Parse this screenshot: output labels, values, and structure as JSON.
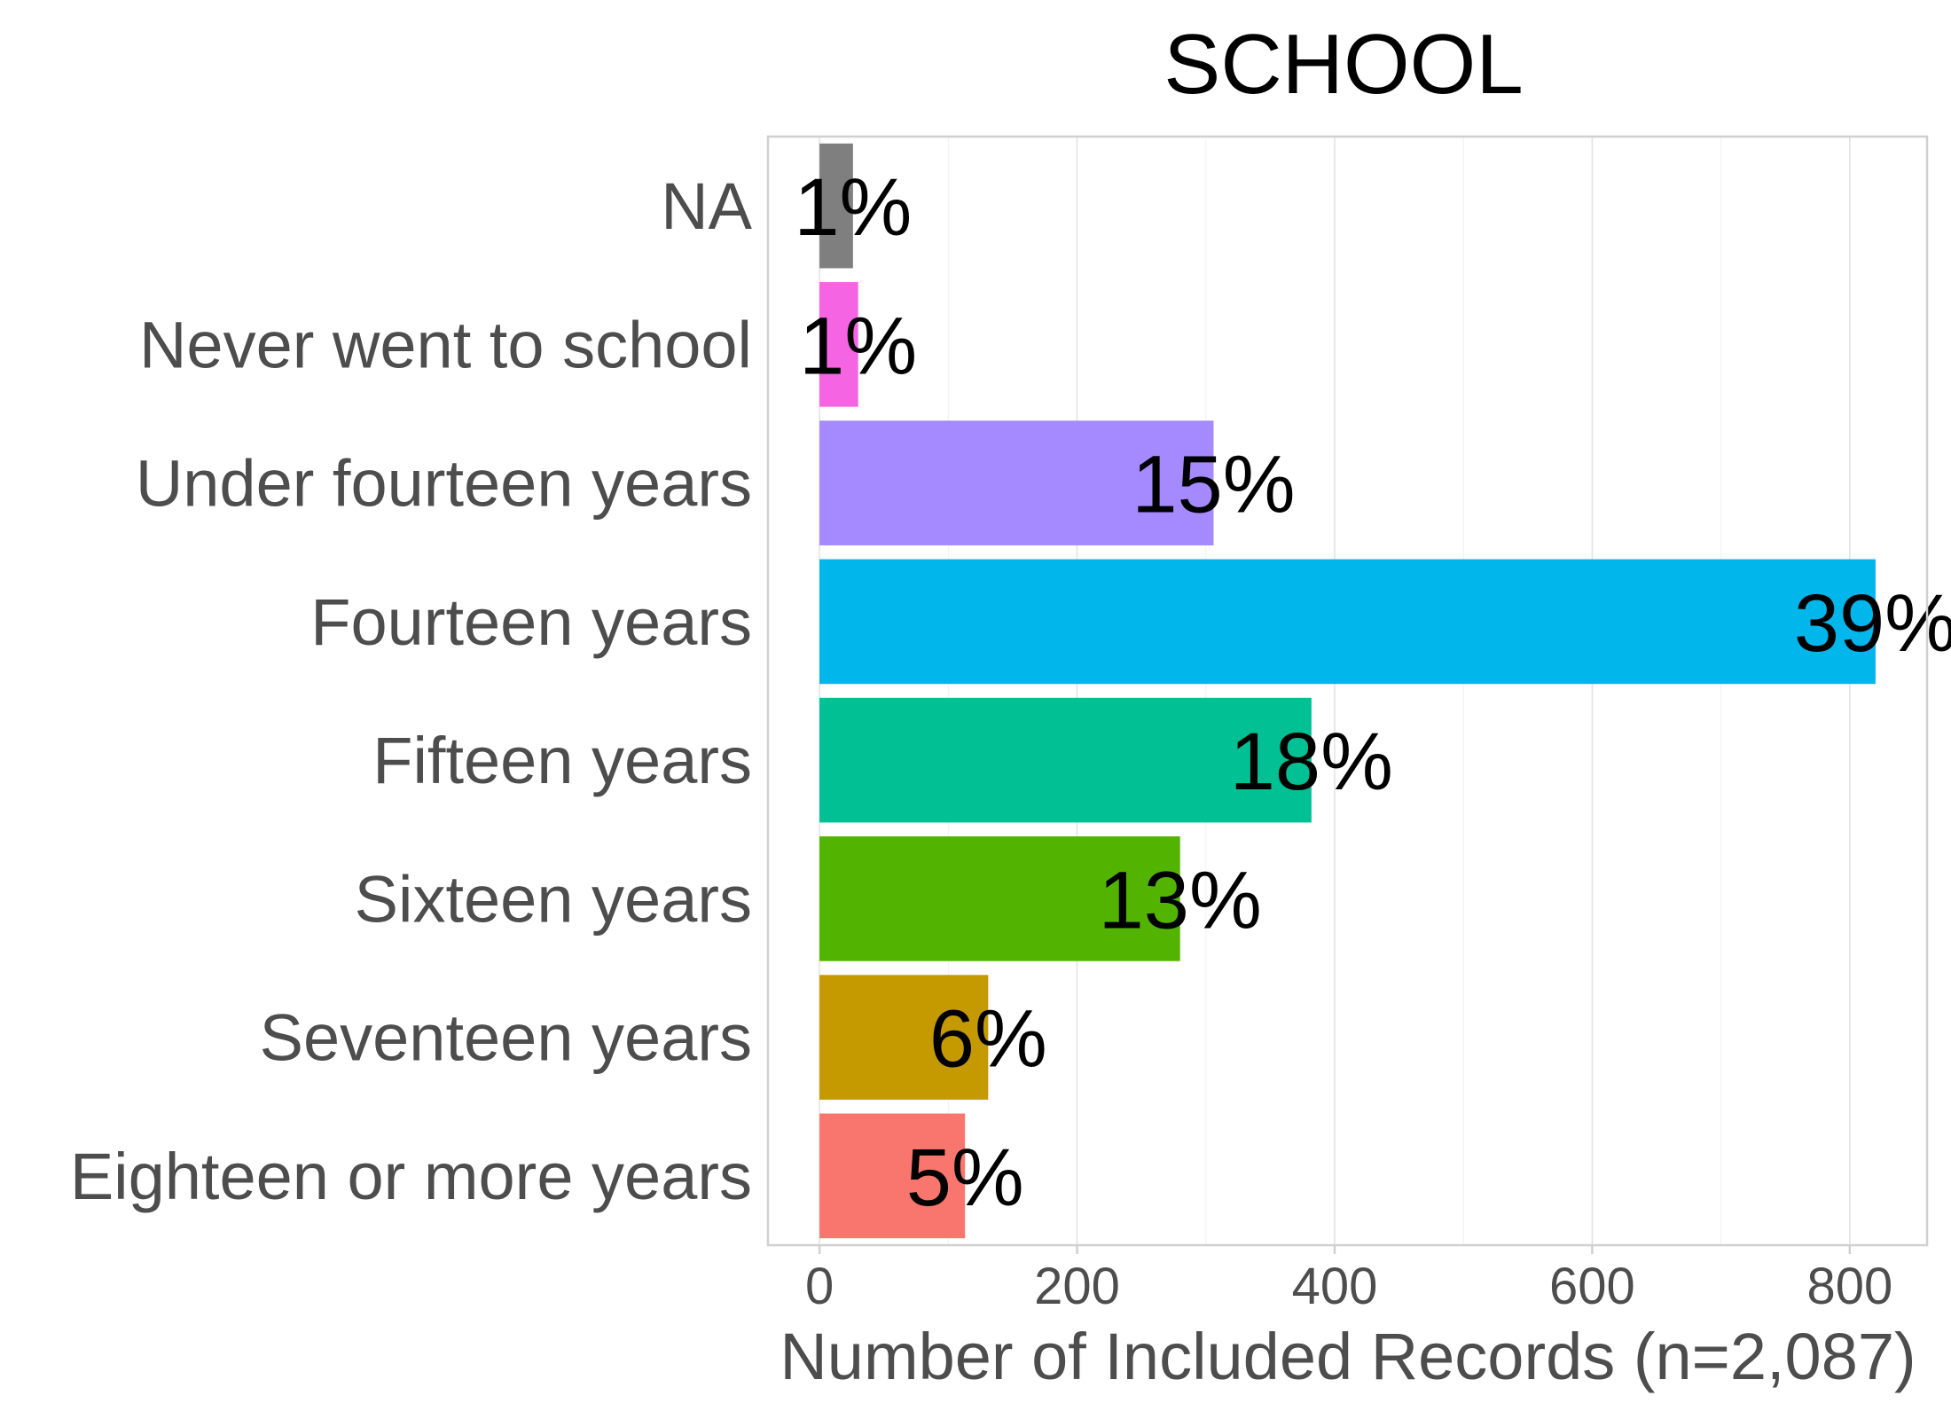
{
  "chart_data": {
    "type": "bar",
    "orientation": "horizontal",
    "title": "SCHOOL",
    "xlabel": "Number of Included Records (n=2,087)",
    "ylabel": "",
    "xlim": [
      -40,
      860
    ],
    "xticks": [
      0,
      200,
      400,
      600,
      800
    ],
    "grid": true,
    "categories": [
      "NA",
      "Never went to school",
      "Under fourteen years",
      "Fourteen years",
      "Fifteen years",
      "Sixteen years",
      "Seventeen years",
      "Eighteen or more years"
    ],
    "values": [
      26,
      30,
      306,
      820,
      382,
      280,
      131,
      113
    ],
    "labels": [
      "1%",
      "1%",
      "15%",
      "39%",
      "18%",
      "13%",
      "6%",
      "5%"
    ],
    "colors": [
      "#7f7f7f",
      "#f564e3",
      "#a58aff",
      "#00b6eb",
      "#00c094",
      "#53b400",
      "#c49a00",
      "#f8766d"
    ]
  }
}
